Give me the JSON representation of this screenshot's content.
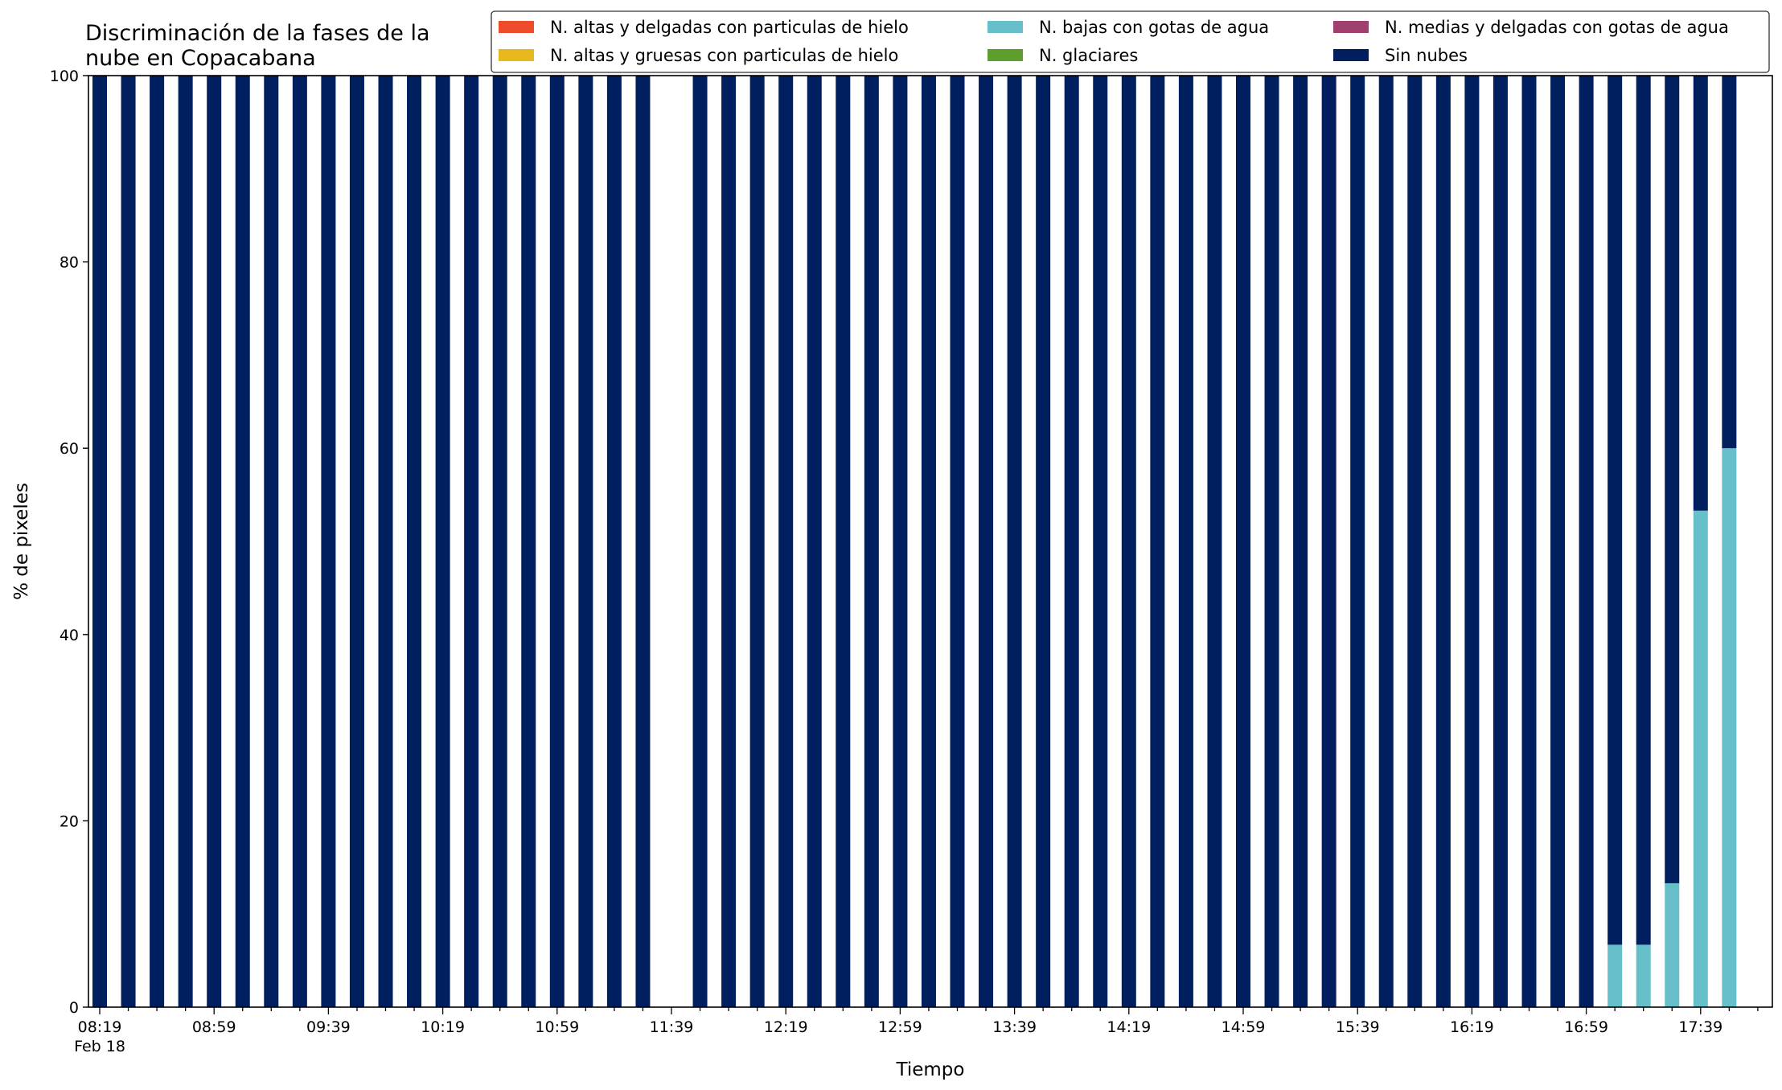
{
  "chart_data": {
    "type": "bar",
    "stacked": true,
    "title_lines": [
      "Discriminación de la fases de la",
      "nube en Copacabana"
    ],
    "xlabel": "Tiempo",
    "ylabel": "% de pixeles",
    "ylim": [
      0,
      100
    ],
    "yticks": [
      "0",
      "20",
      "40",
      "60",
      "80",
      "100"
    ],
    "x_tick_labels": [
      "08:19",
      "08:59",
      "09:39",
      "10:19",
      "10:59",
      "11:39",
      "12:19",
      "12:59",
      "13:39",
      "14:19",
      "14:59",
      "15:39",
      "16:19",
      "16:59",
      "17:39"
    ],
    "x_date_label": "Feb 18",
    "x_start_time": "08:19",
    "x_interval_minutes": 10,
    "legend_position": "upper right",
    "legend_columns": 3,
    "series": [
      {
        "name": "N. altas y delgadas con particulas de hielo",
        "color": "#ee4b2b",
        "values": [
          0,
          0,
          0,
          0,
          0,
          0,
          0,
          0,
          0,
          0,
          0,
          0,
          0,
          0,
          0,
          0,
          0,
          0,
          0,
          0,
          0,
          0,
          0,
          0,
          0,
          0,
          0,
          0,
          0,
          0,
          0,
          0,
          0,
          0,
          0,
          0,
          0,
          0,
          0,
          0,
          0,
          0,
          0,
          0,
          0,
          0,
          0,
          0,
          0,
          0,
          0,
          0,
          0,
          0,
          0,
          0,
          0,
          0
        ]
      },
      {
        "name": "N. altas y gruesas con particulas de hielo",
        "color": "#e6b81c",
        "values": [
          0,
          0,
          0,
          0,
          0,
          0,
          0,
          0,
          0,
          0,
          0,
          0,
          0,
          0,
          0,
          0,
          0,
          0,
          0,
          0,
          0,
          0,
          0,
          0,
          0,
          0,
          0,
          0,
          0,
          0,
          0,
          0,
          0,
          0,
          0,
          0,
          0,
          0,
          0,
          0,
          0,
          0,
          0,
          0,
          0,
          0,
          0,
          0,
          0,
          0,
          0,
          0,
          0,
          0,
          0,
          0,
          0,
          0
        ]
      },
      {
        "name": "N. bajas con gotas de agua",
        "color": "#66bfc9",
        "values": [
          0,
          0,
          0,
          0,
          0,
          0,
          0,
          0,
          0,
          0,
          0,
          0,
          0,
          0,
          0,
          0,
          0,
          0,
          0,
          0,
          0,
          0,
          0,
          0,
          0,
          0,
          0,
          0,
          0,
          0,
          0,
          0,
          0,
          0,
          0,
          0,
          0,
          0,
          0,
          0,
          0,
          0,
          0,
          0,
          0,
          0,
          0,
          0,
          0,
          0,
          0,
          0,
          0,
          6.7,
          6.7,
          13.3,
          53.3,
          60
        ]
      },
      {
        "name": "N. glaciares",
        "color": "#5e9e2c",
        "values": [
          0,
          0,
          0,
          0,
          0,
          0,
          0,
          0,
          0,
          0,
          0,
          0,
          0,
          0,
          0,
          0,
          0,
          0,
          0,
          0,
          0,
          0,
          0,
          0,
          0,
          0,
          0,
          0,
          0,
          0,
          0,
          0,
          0,
          0,
          0,
          0,
          0,
          0,
          0,
          0,
          0,
          0,
          0,
          0,
          0,
          0,
          0,
          0,
          0,
          0,
          0,
          0,
          0,
          0,
          0,
          0,
          0,
          0
        ]
      },
      {
        "name": "N. medias y delgadas con gotas de agua",
        "color": "#a0406e",
        "values": [
          0,
          0,
          0,
          0,
          0,
          0,
          0,
          0,
          0,
          0,
          0,
          0,
          0,
          0,
          0,
          0,
          0,
          0,
          0,
          0,
          0,
          0,
          0,
          0,
          0,
          0,
          0,
          0,
          0,
          0,
          0,
          0,
          0,
          0,
          0,
          0,
          0,
          0,
          0,
          0,
          0,
          0,
          0,
          0,
          0,
          0,
          0,
          0,
          0,
          0,
          0,
          0,
          0,
          0,
          0,
          0,
          0,
          0
        ]
      },
      {
        "name": "Sin nubes",
        "color": "#001f5f",
        "values": [
          100,
          100,
          100,
          100,
          100,
          100,
          100,
          100,
          100,
          100,
          100,
          100,
          100,
          100,
          100,
          100,
          100,
          100,
          100,
          100,
          0,
          100,
          100,
          100,
          100,
          100,
          100,
          100,
          100,
          100,
          100,
          100,
          100,
          100,
          100,
          100,
          100,
          100,
          100,
          100,
          100,
          100,
          100,
          100,
          100,
          100,
          100,
          100,
          100,
          100,
          100,
          100,
          100,
          93.3,
          93.3,
          86.7,
          46.7,
          40
        ]
      }
    ]
  }
}
